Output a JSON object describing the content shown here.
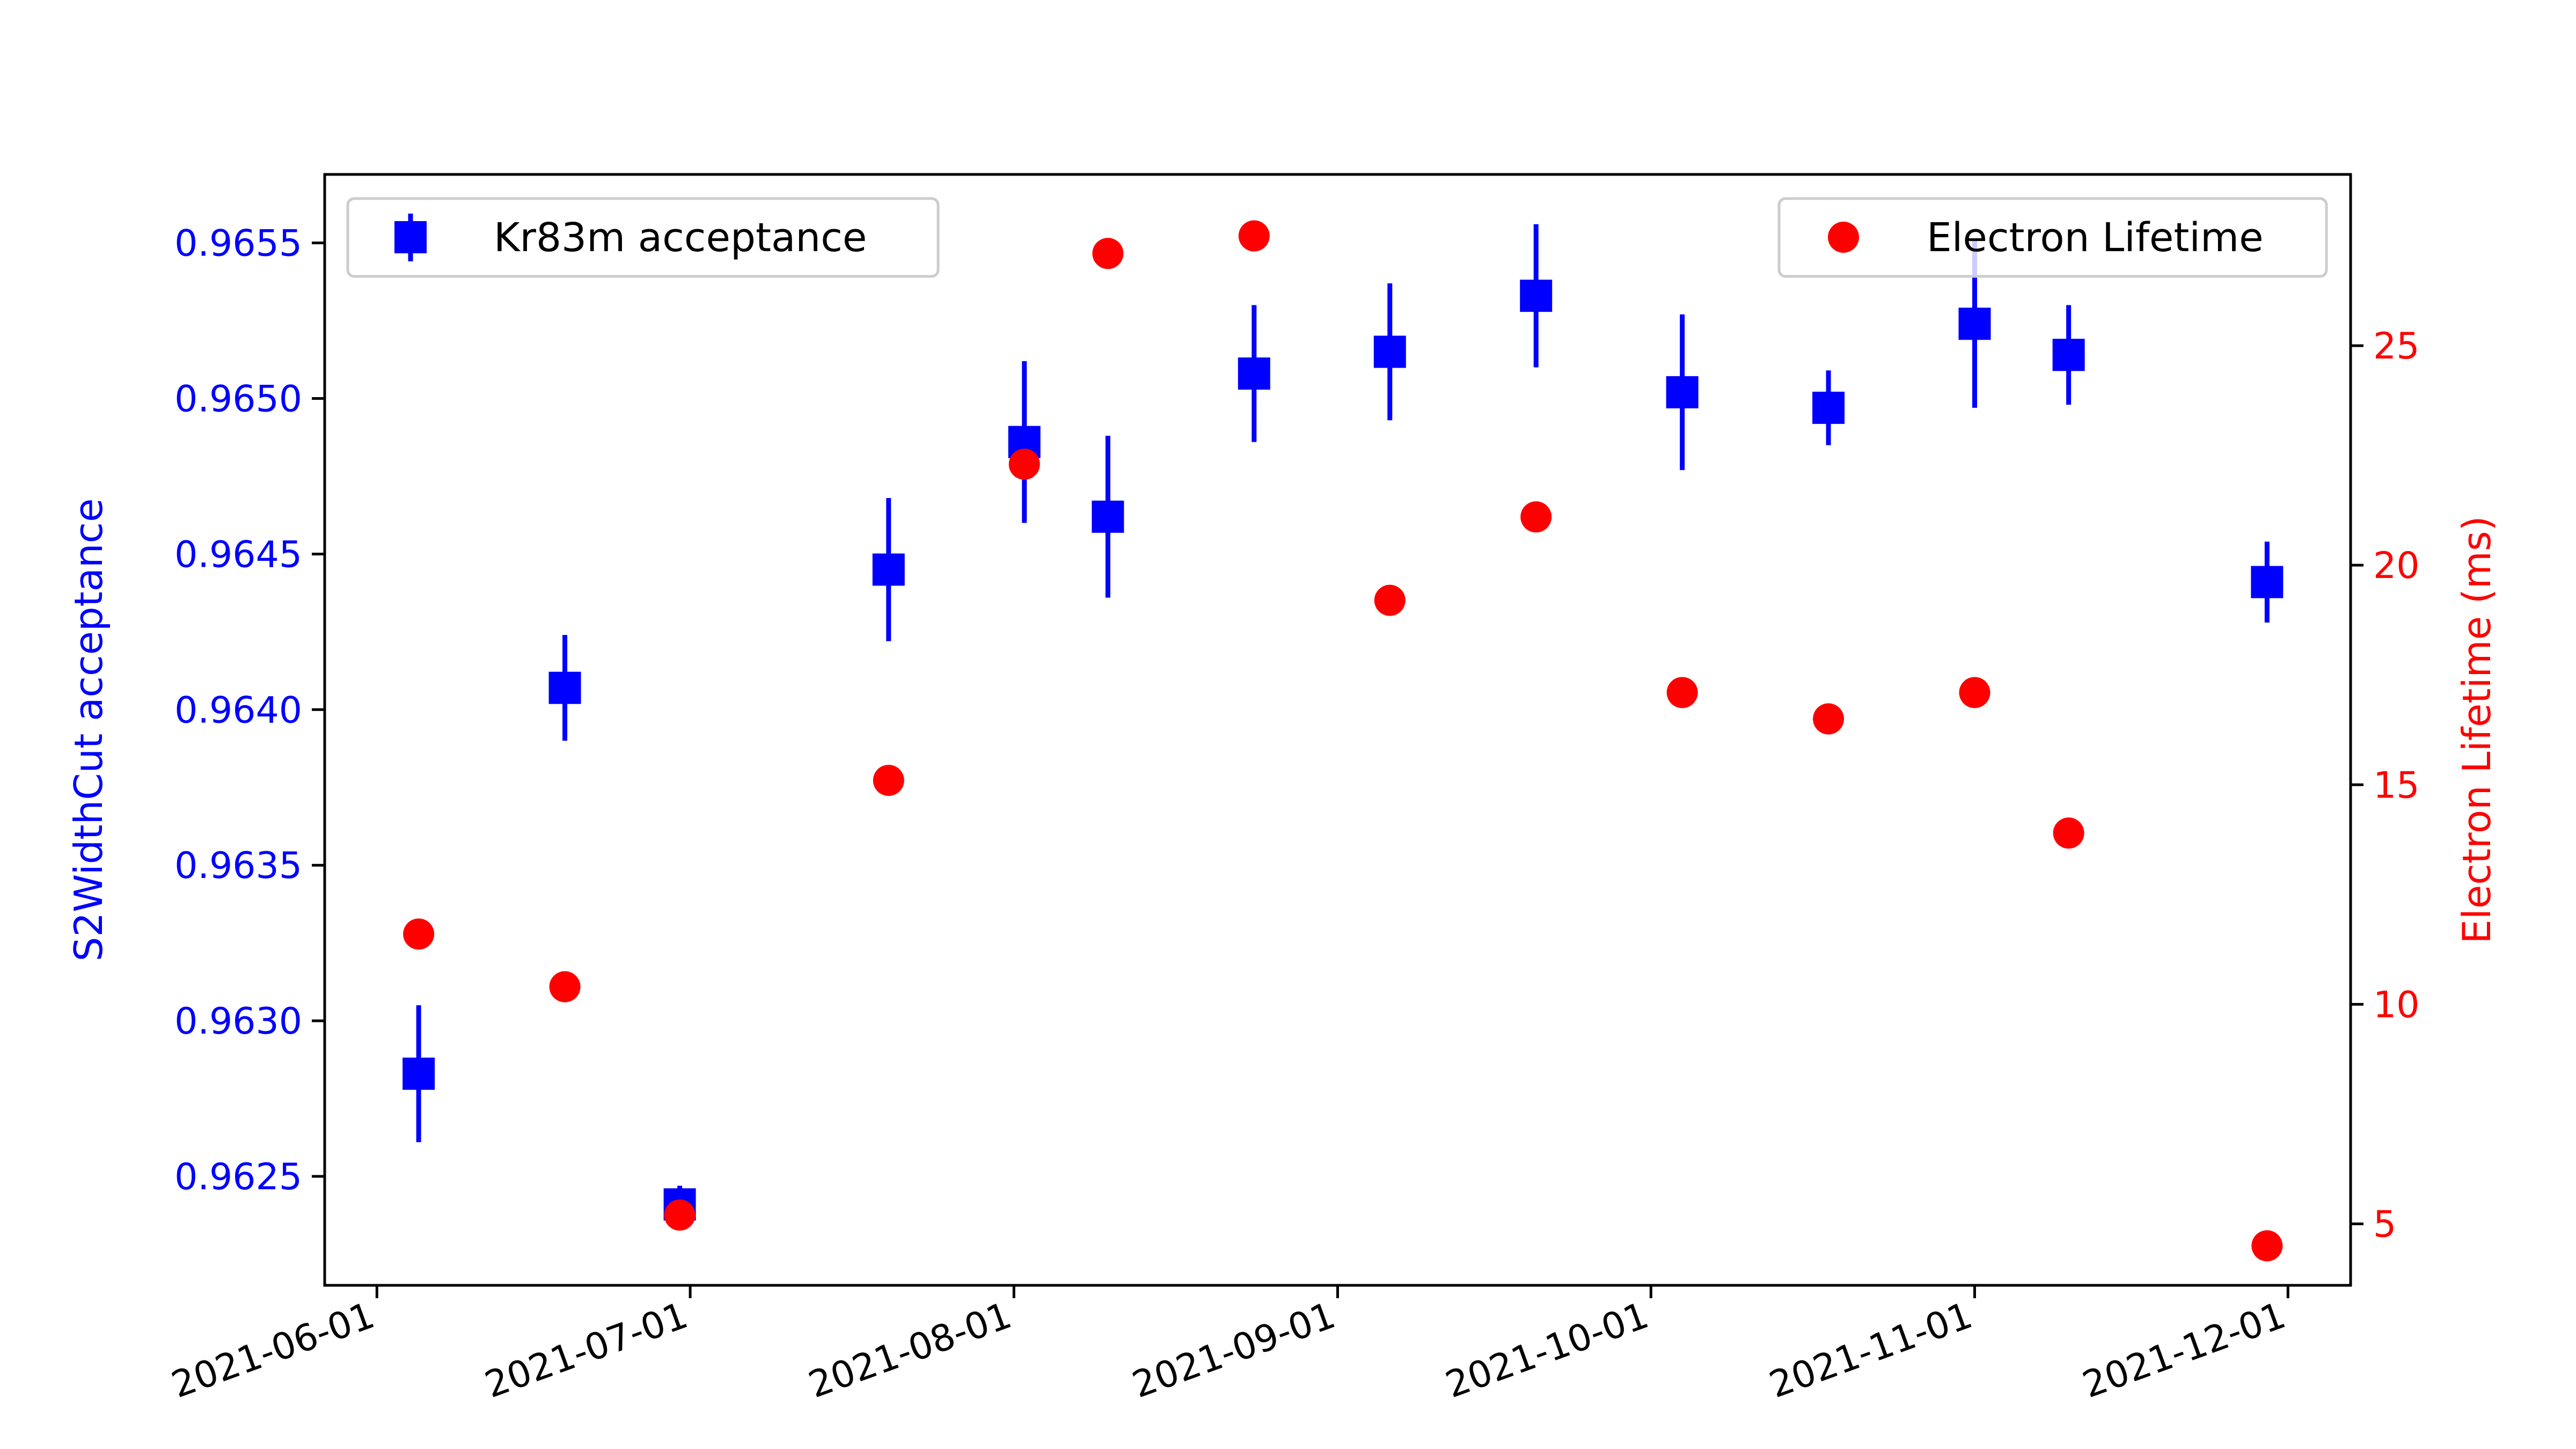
{
  "chart_data": {
    "type": "scatter",
    "title": "",
    "x_axis": {
      "label": "",
      "ticks": [
        "2021-06-01",
        "2021-07-01",
        "2021-08-01",
        "2021-09-01",
        "2021-10-01",
        "2021-11-01",
        "2021-12-01"
      ],
      "range": [
        "2021-05-27",
        "2021-12-07"
      ]
    },
    "left_axis": {
      "label": "S2WidthCut acceptance",
      "color": "#0000ff",
      "range": [
        0.96215,
        0.96572
      ],
      "ticks": [
        "0.9625",
        "0.9630",
        "0.9635",
        "0.9640",
        "0.9645",
        "0.9650",
        "0.9655"
      ]
    },
    "right_axis": {
      "label": "Electron Lifetime (ms)",
      "color": "#ff0000",
      "range": [
        3.6,
        28.9
      ],
      "ticks": [
        "5",
        "10",
        "15",
        "20",
        "25"
      ]
    },
    "grid": false,
    "series": [
      {
        "name": "Kr83m acceptance",
        "axis": "left",
        "color": "#0000ff",
        "marker": "square",
        "legend_position": "upper-left",
        "points": [
          {
            "x": "2021-06-05",
            "y": 0.96283,
            "yerr": 0.00022
          },
          {
            "x": "2021-06-19",
            "y": 0.96407,
            "yerr": 0.00017
          },
          {
            "x": "2021-06-30",
            "y": 0.96241,
            "yerr": 6e-05
          },
          {
            "x": "2021-07-20",
            "y": 0.96445,
            "yerr": 0.00023
          },
          {
            "x": "2021-08-02",
            "y": 0.96486,
            "yerr": 0.00026
          },
          {
            "x": "2021-08-10",
            "y": 0.96462,
            "yerr": 0.00026
          },
          {
            "x": "2021-08-24",
            "y": 0.96508,
            "yerr": 0.00022
          },
          {
            "x": "2021-09-06",
            "y": 0.96515,
            "yerr": 0.00022
          },
          {
            "x": "2021-09-20",
            "y": 0.96533,
            "yerr": 0.00023
          },
          {
            "x": "2021-10-04",
            "y": 0.96502,
            "yerr": 0.00025
          },
          {
            "x": "2021-10-18",
            "y": 0.96497,
            "yerr": 0.00012
          },
          {
            "x": "2021-11-01",
            "y": 0.96524,
            "yerr": 0.00027
          },
          {
            "x": "2021-11-10",
            "y": 0.96514,
            "yerr": 0.00016
          },
          {
            "x": "2021-11-29",
            "y": 0.96441,
            "yerr": 0.00013
          }
        ]
      },
      {
        "name": "Electron Lifetime",
        "axis": "right",
        "color": "#ff0000",
        "marker": "circle",
        "legend_position": "upper-right",
        "points": [
          {
            "x": "2021-06-05",
            "y": 11.6
          },
          {
            "x": "2021-06-19",
            "y": 10.4
          },
          {
            "x": "2021-06-30",
            "y": 5.2
          },
          {
            "x": "2021-07-20",
            "y": 15.1
          },
          {
            "x": "2021-08-02",
            "y": 22.3
          },
          {
            "x": "2021-08-10",
            "y": 27.1
          },
          {
            "x": "2021-08-24",
            "y": 27.5
          },
          {
            "x": "2021-09-06",
            "y": 19.2
          },
          {
            "x": "2021-09-20",
            "y": 21.1
          },
          {
            "x": "2021-10-04",
            "y": 17.1
          },
          {
            "x": "2021-10-18",
            "y": 16.5
          },
          {
            "x": "2021-11-01",
            "y": 17.1
          },
          {
            "x": "2021-11-10",
            "y": 13.9
          },
          {
            "x": "2021-11-29",
            "y": 4.5
          }
        ]
      }
    ]
  }
}
